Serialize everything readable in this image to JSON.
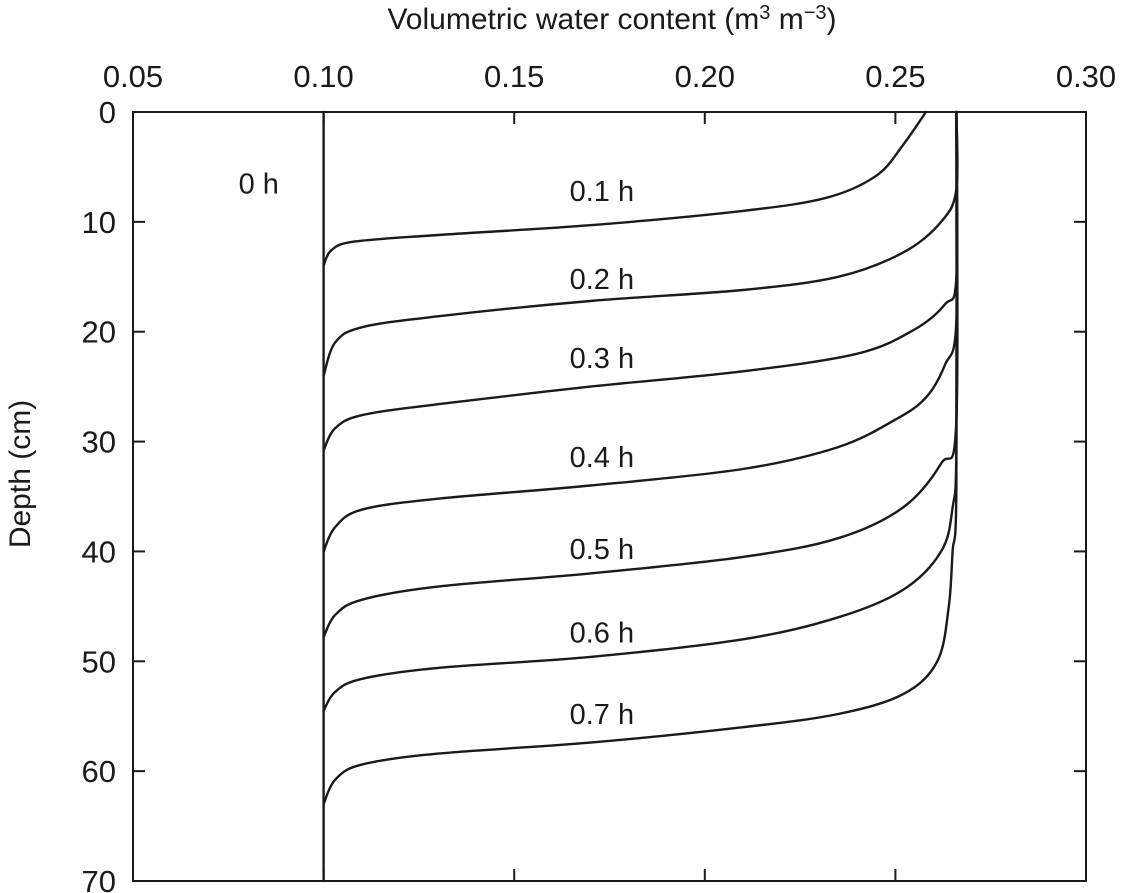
{
  "chart_data": {
    "type": "line",
    "xlabel": "Volumetric water content (m",
    "xlabel_unit_sup1": "3",
    "xlabel_unit_mid": " m",
    "xlabel_unit_sup2": "−3",
    "xlabel_unit_end": ")",
    "ylabel": "Depth (cm)",
    "xlim": [
      0.05,
      0.3
    ],
    "ylim": [
      0,
      70
    ],
    "y_inverted": true,
    "x_axis_position": "top",
    "xticks": [
      "0.05",
      "0.10",
      "0.15",
      "0.20",
      "0.25",
      "0.30"
    ],
    "yticks": [
      "0",
      "10",
      "20",
      "30",
      "40",
      "50",
      "60",
      "70"
    ],
    "grid": false,
    "series": [
      {
        "name": "0 h",
        "points": [
          [
            0.1,
            0
          ],
          [
            0.1,
            70
          ]
        ]
      },
      {
        "name": "0.1 h",
        "points": [
          [
            0.1,
            14
          ],
          [
            0.102,
            12.6
          ],
          [
            0.108,
            11.8
          ],
          [
            0.13,
            11.2
          ],
          [
            0.17,
            10.3
          ],
          [
            0.21,
            9.0
          ],
          [
            0.232,
            7.8
          ],
          [
            0.245,
            5.8
          ],
          [
            0.252,
            3.0
          ],
          [
            0.258,
            0
          ]
        ]
      },
      {
        "name": "0.2 h",
        "points": [
          [
            0.1,
            24
          ],
          [
            0.103,
            21
          ],
          [
            0.11,
            19.6
          ],
          [
            0.13,
            18.6
          ],
          [
            0.17,
            17.2
          ],
          [
            0.21,
            16.2
          ],
          [
            0.235,
            15.0
          ],
          [
            0.252,
            12.8
          ],
          [
            0.262,
            10.0
          ],
          [
            0.266,
            7.0
          ],
          [
            0.266,
            0
          ]
        ]
      },
      {
        "name": "0.3 h",
        "points": [
          [
            0.1,
            30.8
          ],
          [
            0.103,
            28.8
          ],
          [
            0.11,
            27.6
          ],
          [
            0.13,
            26.6
          ],
          [
            0.17,
            25.0
          ],
          [
            0.21,
            23.6
          ],
          [
            0.24,
            22.0
          ],
          [
            0.255,
            19.8
          ],
          [
            0.263,
            17.5
          ],
          [
            0.266,
            15.0
          ],
          [
            0.266,
            0
          ]
        ]
      },
      {
        "name": "0.4 h",
        "points": [
          [
            0.1,
            40
          ],
          [
            0.103,
            37.8
          ],
          [
            0.11,
            36.2
          ],
          [
            0.13,
            35.2
          ],
          [
            0.17,
            34.0
          ],
          [
            0.21,
            32.5
          ],
          [
            0.235,
            30.5
          ],
          [
            0.25,
            28.0
          ],
          [
            0.258,
            26.0
          ],
          [
            0.263,
            23.0
          ],
          [
            0.266,
            19.0
          ],
          [
            0.266,
            0
          ]
        ]
      },
      {
        "name": "0.5 h",
        "points": [
          [
            0.1,
            47.8
          ],
          [
            0.103,
            45.8
          ],
          [
            0.11,
            44.4
          ],
          [
            0.13,
            43.2
          ],
          [
            0.17,
            42.0
          ],
          [
            0.21,
            40.5
          ],
          [
            0.235,
            38.8
          ],
          [
            0.252,
            36.0
          ],
          [
            0.262,
            32.0
          ],
          [
            0.266,
            28.0
          ],
          [
            0.266,
            0
          ]
        ]
      },
      {
        "name": "0.6 h",
        "points": [
          [
            0.1,
            54.5
          ],
          [
            0.103,
            52.8
          ],
          [
            0.11,
            51.6
          ],
          [
            0.13,
            50.6
          ],
          [
            0.17,
            49.6
          ],
          [
            0.21,
            48.0
          ],
          [
            0.235,
            46.0
          ],
          [
            0.252,
            43.5
          ],
          [
            0.262,
            40.0
          ],
          [
            0.265,
            36.0
          ],
          [
            0.266,
            30.0
          ],
          [
            0.266,
            0
          ]
        ]
      },
      {
        "name": "0.7 h",
        "points": [
          [
            0.1,
            63
          ],
          [
            0.103,
            60.8
          ],
          [
            0.11,
            59.4
          ],
          [
            0.13,
            58.4
          ],
          [
            0.17,
            57.4
          ],
          [
            0.21,
            56.0
          ],
          [
            0.235,
            54.8
          ],
          [
            0.252,
            53.0
          ],
          [
            0.261,
            50.0
          ],
          [
            0.264,
            45.0
          ],
          [
            0.265,
            40.0
          ],
          [
            0.266,
            34.0
          ],
          [
            0.266,
            0
          ]
        ]
      }
    ],
    "labels": [
      {
        "text": "0 h",
        "x": 0.083,
        "y": 6.5
      },
      {
        "text": "0.1 h",
        "x": 0.173,
        "y": 7.2
      },
      {
        "text": "0.2 h",
        "x": 0.173,
        "y": 15.2
      },
      {
        "text": "0.3 h",
        "x": 0.173,
        "y": 22.4
      },
      {
        "text": "0.4 h",
        "x": 0.173,
        "y": 31.4
      },
      {
        "text": "0.5 h",
        "x": 0.173,
        "y": 39.8
      },
      {
        "text": "0.6 h",
        "x": 0.173,
        "y": 47.4
      },
      {
        "text": "0.7 h",
        "x": 0.173,
        "y": 54.8
      }
    ]
  }
}
